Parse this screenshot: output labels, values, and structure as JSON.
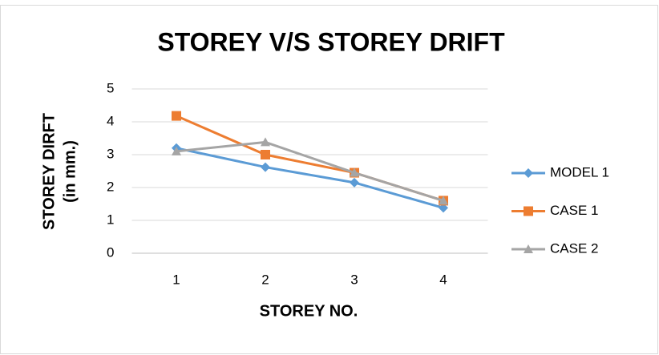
{
  "chart_data": {
    "type": "line",
    "title": "STOREY V/S STOREY DRIFT",
    "x_label": "STOREY NO.",
    "y_label": [
      "STOREY DIRFT",
      "(in mm.)"
    ],
    "categories": [
      "1",
      "2",
      "3",
      "4"
    ],
    "series": [
      {
        "name": "MODEL 1",
        "color": "#5b9bd5",
        "marker": "diamond",
        "values": [
          3.2,
          2.62,
          2.15,
          1.38
        ]
      },
      {
        "name": "CASE 1",
        "color": "#ed7d31",
        "marker": "square",
        "values": [
          4.18,
          3.0,
          2.45,
          1.6
        ]
      },
      {
        "name": "CASE 2",
        "color": "#a5a5a5",
        "marker": "triangle",
        "values": [
          3.1,
          3.38,
          2.45,
          1.6
        ]
      }
    ],
    "ylim": [
      0,
      5
    ],
    "yticks": [
      0,
      1,
      2,
      3,
      4,
      5
    ],
    "grid": true,
    "legend": "right"
  }
}
